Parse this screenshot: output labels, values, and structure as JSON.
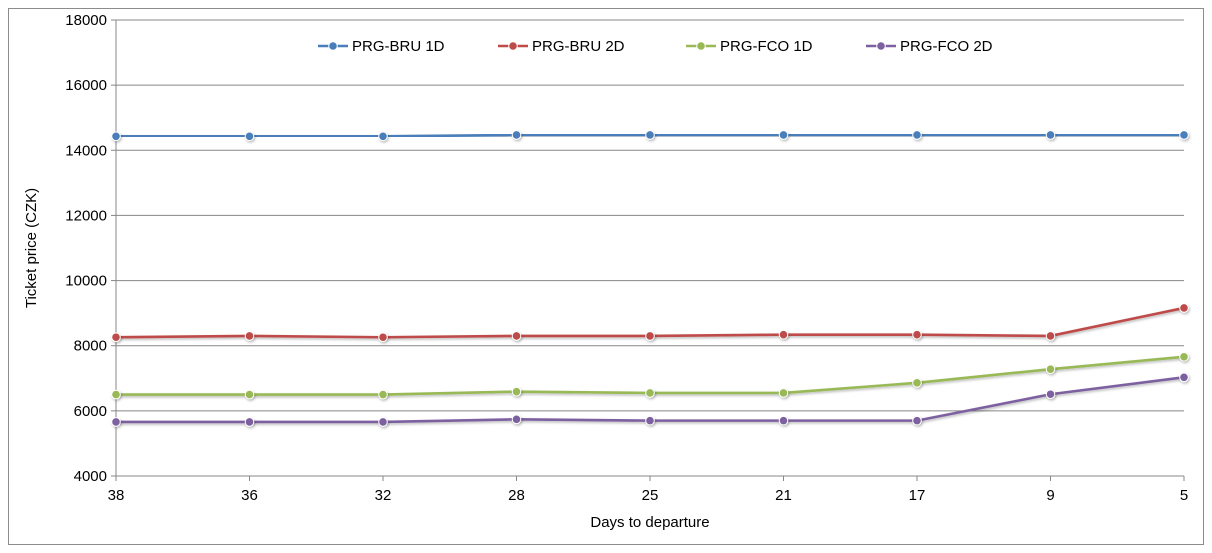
{
  "chart_data": {
    "type": "line",
    "title": "",
    "xlabel": "Days to departure",
    "ylabel": "Ticket price (CZK)",
    "categories": [
      "38",
      "36",
      "32",
      "28",
      "25",
      "21",
      "17",
      "9",
      "5"
    ],
    "ylim": [
      4000,
      18000
    ],
    "yticks": [
      "4000",
      "6000",
      "8000",
      "10000",
      "12000",
      "14000",
      "16000",
      "18000"
    ],
    "grid": "horizontal",
    "legend_position": "top",
    "series": [
      {
        "name": "PRG-BRU 1D",
        "color": "#4a7ebb",
        "values": [
          14430,
          14430,
          14430,
          14470,
          14470,
          14470,
          14470,
          14470,
          14470
        ]
      },
      {
        "name": "PRG-BRU 2D",
        "color": "#be4b48",
        "values": [
          8260,
          8300,
          8260,
          8300,
          8300,
          8340,
          8340,
          8300,
          9160
        ]
      },
      {
        "name": "PRG-FCO 1D",
        "color": "#98b954",
        "values": [
          6500,
          6500,
          6500,
          6590,
          6550,
          6550,
          6860,
          7280,
          7660
        ]
      },
      {
        "name": "PRG-FCO 2D",
        "color": "#7d60a0",
        "values": [
          5660,
          5660,
          5660,
          5740,
          5700,
          5700,
          5700,
          6510,
          7030
        ]
      }
    ]
  }
}
